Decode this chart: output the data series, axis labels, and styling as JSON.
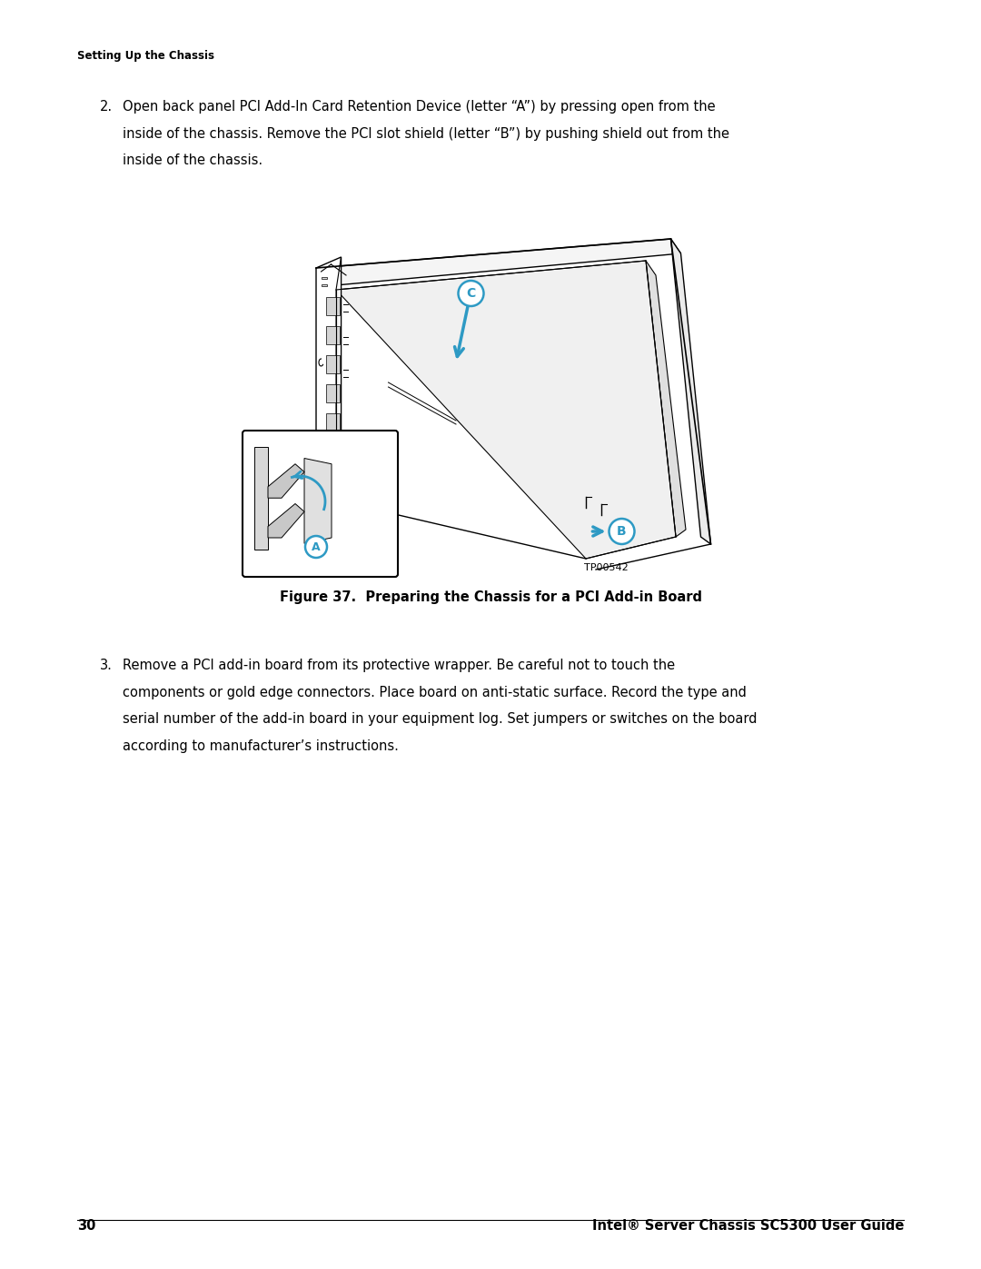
{
  "background_color": "#ffffff",
  "page_width": 10.8,
  "page_height": 13.97,
  "dpi": 100,
  "header_text": "Setting Up the Chassis",
  "header_fontsize": 8.5,
  "step2_number": "2.",
  "step2_text_line1": "Open back panel PCI Add-In Card Retention Device (letter “A”) by pressing open from the",
  "step2_text_line2": "inside of the chassis. Remove the PCI slot shield (letter “B”) by pushing shield out from the",
  "step2_text_line3": "inside of the chassis.",
  "step_fontsize": 10.5,
  "figure_caption": "Figure 37.  Preparing the Chassis for a PCI Add-in Board",
  "figure_caption_fontsize": 10.5,
  "tp_text": "TP00542",
  "tp_fontsize": 8,
  "step3_number": "3.",
  "step3_text_line1": "Remove a PCI add-in board from its protective wrapper. Be careful not to touch the",
  "step3_text_line2": "components or gold edge connectors. Place board on anti-static surface. Record the type and",
  "step3_text_line3": "serial number of the add-in board in your equipment log. Set jumpers or switches on the board",
  "step3_text_line4": "according to manufacturer’s instructions.",
  "footer_page": "30",
  "footer_title": "Intel® Server Chassis SC5300 User Guide",
  "footer_fontsize": 10.5,
  "blue_color": "#2E9AC4",
  "black": "#000000",
  "gray_light": "#e8e8e8",
  "gray_mid": "#d0d0d0",
  "gray_dark": "#b0b0b0"
}
